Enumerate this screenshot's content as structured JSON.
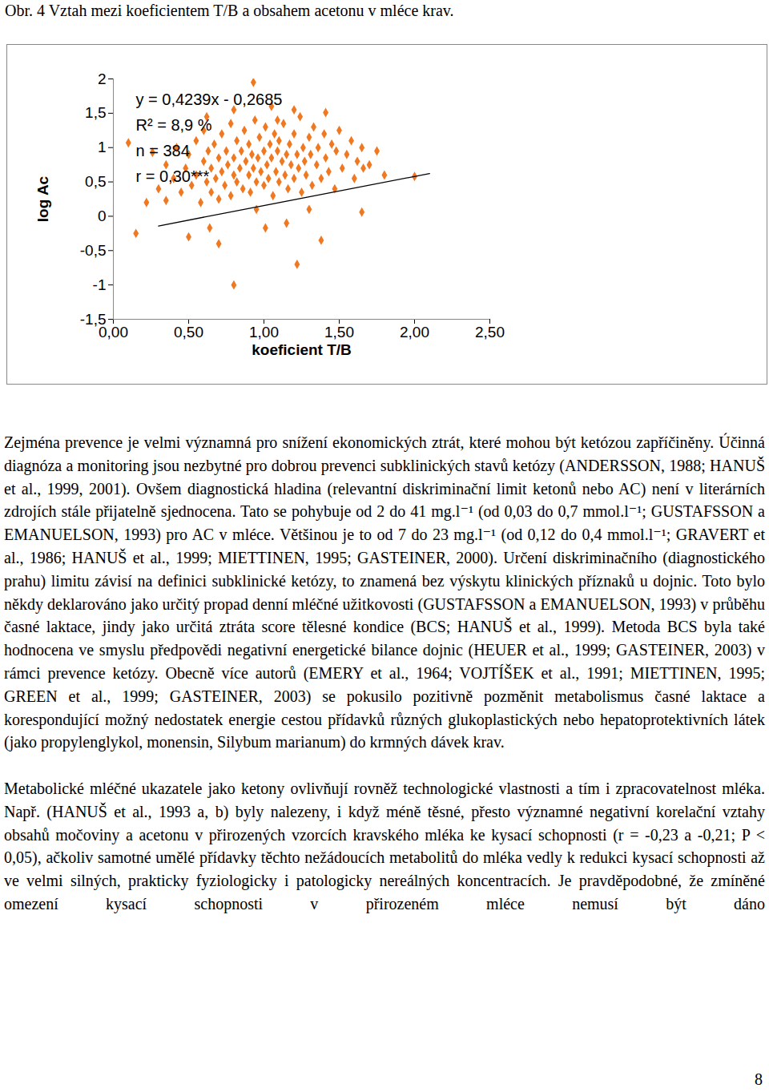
{
  "caption": "Obr. 4 Vztah mezi koeficientem T/B a obsahem acetonu v mléce krav.",
  "chart_data": {
    "type": "scatter",
    "x_label": "koeficient T/B",
    "y_label": "log Ac",
    "annotations": [
      "y = 0,4239x - 0,2685",
      "R² = 8,9 %",
      "n = 384",
      "r = 0,30***"
    ],
    "color": "#f07820",
    "marker": "diamond",
    "xlim": [
      0,
      2.5
    ],
    "ylim": [
      -1.5,
      2
    ],
    "xticks": [
      {
        "value": 0,
        "label": "0,00"
      },
      {
        "value": 0.5,
        "label": "0,50"
      },
      {
        "value": 1,
        "label": "1,00"
      },
      {
        "value": 1.5,
        "label": "1,50"
      },
      {
        "value": 2,
        "label": "2,00"
      },
      {
        "value": 2.5,
        "label": "2,50"
      }
    ],
    "yticks": [
      {
        "value": 2,
        "label": "2"
      },
      {
        "value": 1.5,
        "label": "1,5"
      },
      {
        "value": 1,
        "label": "1"
      },
      {
        "value": 0.5,
        "label": "0,5"
      },
      {
        "value": 0,
        "label": "0"
      },
      {
        "value": -0.5,
        "label": "-0,5"
      },
      {
        "value": -1,
        "label": "-1"
      },
      {
        "value": -1.5,
        "label": "-1,5"
      }
    ],
    "trendline": {
      "x": [
        0.3,
        2.1
      ],
      "y": [
        -0.141,
        0.622
      ]
    },
    "points": [
      [
        0.8,
        -1.0
      ],
      [
        0.26,
        0.93
      ],
      [
        0.1,
        1.07
      ],
      [
        0.93,
        1.95
      ],
      [
        1.41,
        1.51
      ],
      [
        1.09,
        1.4
      ],
      [
        1.66,
        0.7
      ],
      [
        2.0,
        0.58
      ],
      [
        1.65,
        0.06
      ],
      [
        1.22,
        -0.7
      ],
      [
        1.38,
        -0.35
      ],
      [
        1.01,
        -0.17
      ],
      [
        0.64,
        -0.17
      ],
      [
        0.35,
        0.23
      ],
      [
        0.4,
        0.55
      ],
      [
        0.45,
        0.35
      ],
      [
        0.48,
        0.7
      ],
      [
        0.5,
        0.9
      ],
      [
        0.52,
        0.45
      ],
      [
        0.55,
        1.1
      ],
      [
        0.55,
        0.6
      ],
      [
        0.58,
        0.2
      ],
      [
        0.6,
        0.8
      ],
      [
        0.6,
        1.25
      ],
      [
        0.62,
        0.5
      ],
      [
        0.63,
        0.95
      ],
      [
        0.65,
        0.35
      ],
      [
        0.65,
        0.7
      ],
      [
        0.67,
        1.05
      ],
      [
        0.68,
        0.55
      ],
      [
        0.7,
        0.85
      ],
      [
        0.7,
        0.25
      ],
      [
        0.72,
        1.2
      ],
      [
        0.72,
        0.65
      ],
      [
        0.74,
        0.45
      ],
      [
        0.75,
        0.95
      ],
      [
        0.76,
        0.75
      ],
      [
        0.78,
        1.35
      ],
      [
        0.78,
        0.3
      ],
      [
        0.8,
        0.6
      ],
      [
        0.8,
        0.85
      ],
      [
        0.82,
        1.1
      ],
      [
        0.82,
        0.5
      ],
      [
        0.84,
        0.7
      ],
      [
        0.85,
        0.95
      ],
      [
        0.86,
        0.4
      ],
      [
        0.87,
        1.25
      ],
      [
        0.88,
        0.8
      ],
      [
        0.9,
        0.6
      ],
      [
        0.9,
        1.05
      ],
      [
        0.91,
        0.35
      ],
      [
        0.92,
        0.9
      ],
      [
        0.93,
        0.7
      ],
      [
        0.94,
        1.4
      ],
      [
        0.95,
        0.5
      ],
      [
        0.96,
        0.85
      ],
      [
        0.97,
        1.15
      ],
      [
        0.98,
        0.65
      ],
      [
        1.0,
        0.95
      ],
      [
        1.0,
        0.45
      ],
      [
        1.01,
        1.3
      ],
      [
        1.02,
        0.75
      ],
      [
        1.03,
        0.55
      ],
      [
        1.04,
        1.05
      ],
      [
        1.05,
        0.85
      ],
      [
        1.06,
        0.3
      ],
      [
        1.07,
        1.2
      ],
      [
        1.08,
        0.65
      ],
      [
        1.09,
        0.95
      ],
      [
        1.1,
        0.5
      ],
      [
        1.1,
        1.1
      ],
      [
        1.12,
        0.8
      ],
      [
        1.13,
        1.35
      ],
      [
        1.14,
        0.6
      ],
      [
        1.15,
        0.9
      ],
      [
        1.16,
        0.4
      ],
      [
        1.17,
        1.05
      ],
      [
        1.18,
        0.75
      ],
      [
        1.2,
        1.2
      ],
      [
        1.2,
        0.55
      ],
      [
        1.22,
        0.9
      ],
      [
        1.23,
        0.7
      ],
      [
        1.24,
        1.45
      ],
      [
        1.25,
        0.35
      ],
      [
        1.26,
        1.0
      ],
      [
        1.27,
        0.8
      ],
      [
        1.28,
        0.6
      ],
      [
        1.3,
        1.15
      ],
      [
        1.31,
        0.9
      ],
      [
        1.32,
        0.45
      ],
      [
        1.33,
        1.3
      ],
      [
        1.35,
        0.75
      ],
      [
        1.36,
        1.0
      ],
      [
        1.38,
        0.55
      ],
      [
        1.4,
        1.2
      ],
      [
        1.41,
        0.85
      ],
      [
        1.43,
        0.65
      ],
      [
        1.45,
        1.05
      ],
      [
        1.47,
        0.4
      ],
      [
        1.48,
        0.95
      ],
      [
        1.5,
        1.25
      ],
      [
        1.52,
        0.7
      ],
      [
        1.55,
        0.9
      ],
      [
        1.58,
        1.1
      ],
      [
        1.6,
        0.55
      ],
      [
        1.62,
        0.8
      ],
      [
        1.65,
        1.0
      ],
      [
        1.7,
        0.75
      ],
      [
        1.75,
        0.95
      ],
      [
        1.8,
        0.6
      ],
      [
        0.42,
        1.0
      ],
      [
        0.35,
        0.75
      ],
      [
        0.3,
        0.4
      ],
      [
        0.22,
        0.2
      ],
      [
        0.15,
        -0.25
      ],
      [
        0.5,
        -0.3
      ],
      [
        0.7,
        -0.4
      ],
      [
        1.15,
        -0.1
      ],
      [
        1.3,
        0.1
      ],
      [
        0.95,
        0.1
      ],
      [
        0.8,
        1.55
      ],
      [
        1.05,
        1.6
      ],
      [
        1.2,
        1.55
      ],
      [
        0.62,
        1.45
      ]
    ]
  },
  "paragraphs": [
    "Zejména prevence je velmi významná pro snížení ekonomických ztrát, které mohou být ketózou zapříčiněny. Účinná diagnóza a monitoring jsou nezbytné pro dobrou prevenci subklinických stavů ketózy (ANDERSSON, 1988; HANUŠ et al., 1999, 2001). Ovšem diagnostická hladina (relevantní diskriminační limit ketonů nebo AC) není v literárních zdrojích stále přijatelně sjednocena. Tato se pohybuje od 2 do 41 mg.l⁻¹ (od 0,03 do 0,7 mmol.l⁻¹; GUSTAFSSON a EMANUELSON, 1993) pro AC v mléce. Většinou je to od 7 do 23 mg.l⁻¹ (od 0,12 do 0,4 mmol.l⁻¹; GRAVERT et al., 1986; HANUŠ et al., 1999; MIETTINEN, 1995; GASTEINER, 2000). Určení diskriminačního (diagnostického prahu) limitu závisí na definici subklinické ketózy, to znamená bez výskytu klinických příznaků u dojnic. Toto bylo někdy deklarováno jako určitý propad denní mléčné užitkovosti (GUSTAFSSON a EMANUELSON, 1993) v průběhu časné laktace, jindy jako určitá ztráta score tělesné kondice (BCS; HANUŠ et al., 1999). Metoda BCS byla také hodnocena ve smyslu předpovědi negativní energetické bilance dojnic (HEUER et al., 1999; GASTEINER, 2003) v rámci prevence ketózy. Obecně více autorů (EMERY et al., 1964; VOJTÍŠEK et al., 1991; MIETTINEN, 1995; GREEN et al., 1999; GASTEINER, 2003) se pokusilo pozitivně pozměnit metabolismus časné laktace a korespondující možný nedostatek energie cestou přídavků různých glukoplastických nebo hepatoprotektivních látek (jako propylenglykol, monensin, Silybum marianum) do krmných dávek krav.",
    "Metabolické mléčné ukazatele jako ketony ovlivňují rovněž technologické vlastnosti a tím i zpracovatelnost mléka. Např. (HANUŠ et al., 1993 a, b) byly nalezeny, i když méně těsné, přesto významné negativní korelační vztahy obsahů močoviny a acetonu v přirozených vzorcích kravského mléka ke kysací schopnosti (r = -0,23 a -0,21; P < 0,05), ačkoliv samotné umělé přídavky těchto nežádoucích metabolitů do mléka vedly k redukci kysací schopnosti až ve velmi silných, prakticky fyziologicky i patologicky nereálných koncentracích. Je pravděpodobné, že zmíněné omezení kysací schopnosti v přirozeném mléce nemusí být dáno"
  ],
  "page_number": "8"
}
